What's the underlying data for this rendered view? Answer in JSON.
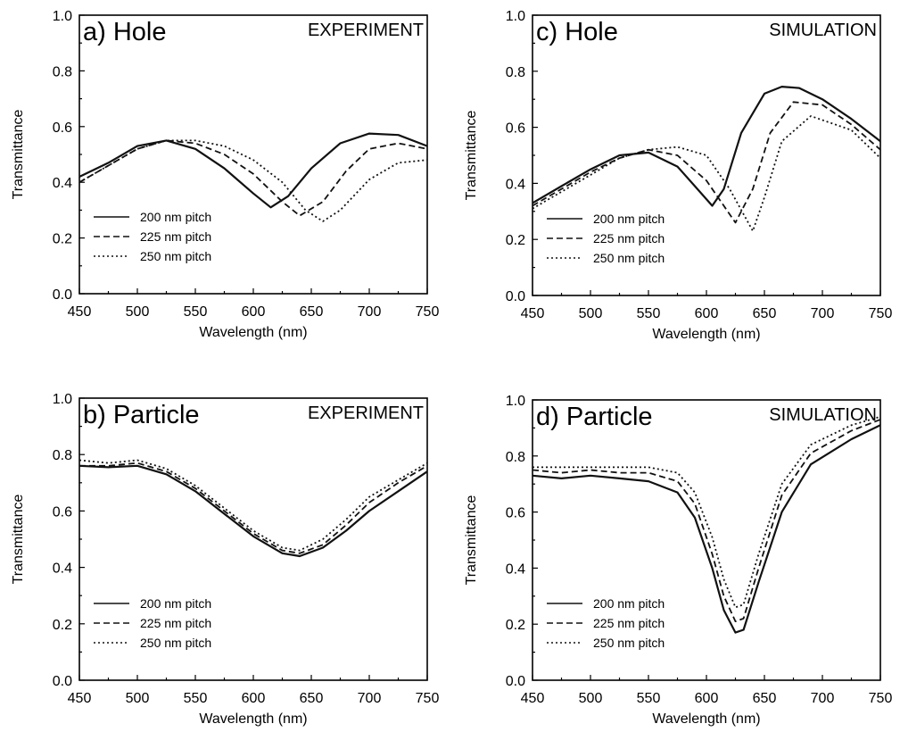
{
  "chart_data": [
    {
      "type": "line",
      "panel_label": "a) Hole",
      "tag": "EXPERIMENT",
      "xlabel": "Wavelength (nm)",
      "ylabel": "Transmittance",
      "xlim": [
        450,
        750
      ],
      "ylim": [
        0.0,
        1.0
      ],
      "xticks": [
        "450",
        "500",
        "550",
        "600",
        "650",
        "700",
        "750"
      ],
      "yticks": [
        "0.0",
        "0.2",
        "0.4",
        "0.6",
        "0.8",
        "1.0"
      ],
      "legend_position": "bottom-left",
      "series": [
        {
          "name": "200 nm pitch",
          "style": "solid",
          "x": [
            450,
            475,
            500,
            525,
            550,
            575,
            600,
            615,
            630,
            650,
            675,
            700,
            725,
            750
          ],
          "y": [
            0.42,
            0.47,
            0.53,
            0.55,
            0.52,
            0.45,
            0.36,
            0.31,
            0.35,
            0.45,
            0.54,
            0.575,
            0.57,
            0.53
          ]
        },
        {
          "name": "225 nm pitch",
          "style": "dashed",
          "x": [
            450,
            475,
            500,
            525,
            550,
            575,
            600,
            625,
            640,
            660,
            680,
            700,
            725,
            750
          ],
          "y": [
            0.4,
            0.46,
            0.52,
            0.55,
            0.54,
            0.5,
            0.43,
            0.33,
            0.28,
            0.33,
            0.44,
            0.52,
            0.54,
            0.52
          ]
        },
        {
          "name": "250 nm pitch",
          "style": "dotted",
          "x": [
            450,
            475,
            500,
            525,
            550,
            575,
            600,
            625,
            645,
            660,
            675,
            700,
            725,
            750
          ],
          "y": [
            0.4,
            0.46,
            0.52,
            0.55,
            0.55,
            0.53,
            0.48,
            0.4,
            0.3,
            0.26,
            0.3,
            0.41,
            0.47,
            0.48
          ]
        }
      ]
    },
    {
      "type": "line",
      "panel_label": "b) Particle",
      "tag": "EXPERIMENT",
      "xlabel": "Wavelength (nm)",
      "ylabel": "Transmittance",
      "xlim": [
        450,
        750
      ],
      "ylim": [
        0.0,
        1.0
      ],
      "xticks": [
        "450",
        "500",
        "550",
        "600",
        "650",
        "700",
        "750"
      ],
      "yticks": [
        "0.0",
        "0.2",
        "0.4",
        "0.6",
        "0.8",
        "1.0"
      ],
      "legend_position": "bottom-left",
      "series": [
        {
          "name": "200 nm pitch",
          "style": "solid",
          "x": [
            450,
            475,
            500,
            525,
            550,
            575,
            600,
            625,
            640,
            660,
            680,
            700,
            725,
            750
          ],
          "y": [
            0.76,
            0.755,
            0.76,
            0.73,
            0.67,
            0.59,
            0.51,
            0.45,
            0.44,
            0.47,
            0.53,
            0.6,
            0.67,
            0.74
          ]
        },
        {
          "name": "225 nm pitch",
          "style": "dashed",
          "x": [
            450,
            475,
            500,
            525,
            550,
            575,
            600,
            625,
            640,
            660,
            680,
            700,
            725,
            750
          ],
          "y": [
            0.76,
            0.76,
            0.77,
            0.74,
            0.68,
            0.6,
            0.52,
            0.46,
            0.45,
            0.48,
            0.55,
            0.63,
            0.7,
            0.76
          ]
        },
        {
          "name": "250 nm pitch",
          "style": "dotted",
          "x": [
            450,
            475,
            500,
            525,
            550,
            575,
            600,
            625,
            640,
            660,
            680,
            700,
            725,
            750
          ],
          "y": [
            0.78,
            0.77,
            0.78,
            0.75,
            0.69,
            0.61,
            0.53,
            0.47,
            0.46,
            0.5,
            0.57,
            0.65,
            0.71,
            0.77
          ]
        }
      ]
    },
    {
      "type": "line",
      "panel_label": "c) Hole",
      "tag": "SIMULATION",
      "xlabel": "Wavelength (nm)",
      "ylabel": "Transmittance",
      "xlim": [
        450,
        750
      ],
      "ylim": [
        0.0,
        1.0
      ],
      "xticks": [
        "450",
        "500",
        "550",
        "600",
        "650",
        "700",
        "750"
      ],
      "yticks": [
        "0.0",
        "0.2",
        "0.4",
        "0.6",
        "0.8",
        "1.0"
      ],
      "legend_position": "bottom-left",
      "series": [
        {
          "name": "200 nm pitch",
          "style": "solid",
          "x": [
            450,
            475,
            500,
            525,
            550,
            575,
            590,
            605,
            615,
            630,
            650,
            665,
            680,
            700,
            725,
            750
          ],
          "y": [
            0.33,
            0.39,
            0.45,
            0.5,
            0.51,
            0.46,
            0.39,
            0.32,
            0.38,
            0.58,
            0.72,
            0.745,
            0.74,
            0.7,
            0.63,
            0.55
          ]
        },
        {
          "name": "225 nm pitch",
          "style": "dashed",
          "x": [
            450,
            475,
            500,
            525,
            550,
            575,
            600,
            625,
            640,
            655,
            675,
            700,
            725,
            750
          ],
          "y": [
            0.32,
            0.38,
            0.44,
            0.49,
            0.52,
            0.5,
            0.41,
            0.26,
            0.38,
            0.58,
            0.69,
            0.68,
            0.61,
            0.52
          ]
        },
        {
          "name": "250 nm pitch",
          "style": "dotted",
          "x": [
            450,
            475,
            500,
            525,
            550,
            575,
            600,
            620,
            640,
            650,
            665,
            690,
            725,
            750
          ],
          "y": [
            0.31,
            0.37,
            0.43,
            0.49,
            0.52,
            0.53,
            0.5,
            0.38,
            0.23,
            0.35,
            0.55,
            0.64,
            0.59,
            0.49
          ]
        }
      ]
    },
    {
      "type": "line",
      "panel_label": "d) Particle",
      "tag": "SIMULATION",
      "xlabel": "Wavelength (nm)",
      "ylabel": "Transmittance",
      "xlim": [
        450,
        750
      ],
      "ylim": [
        0.0,
        1.0
      ],
      "xticks": [
        "450",
        "500",
        "550",
        "600",
        "650",
        "700",
        "750"
      ],
      "yticks": [
        "0.0",
        "0.2",
        "0.4",
        "0.6",
        "0.8",
        "1.0"
      ],
      "legend_position": "bottom-left",
      "series": [
        {
          "name": "200 nm pitch",
          "style": "solid",
          "x": [
            450,
            475,
            500,
            525,
            550,
            575,
            590,
            605,
            615,
            625,
            632,
            645,
            665,
            690,
            725,
            750
          ],
          "y": [
            0.73,
            0.72,
            0.73,
            0.72,
            0.71,
            0.67,
            0.58,
            0.4,
            0.25,
            0.17,
            0.18,
            0.35,
            0.6,
            0.77,
            0.86,
            0.91
          ]
        },
        {
          "name": "225 nm pitch",
          "style": "dashed",
          "x": [
            450,
            475,
            500,
            525,
            550,
            575,
            590,
            605,
            615,
            625,
            632,
            645,
            665,
            690,
            725,
            750
          ],
          "y": [
            0.75,
            0.74,
            0.75,
            0.74,
            0.74,
            0.71,
            0.63,
            0.45,
            0.3,
            0.21,
            0.22,
            0.4,
            0.66,
            0.81,
            0.89,
            0.93
          ]
        },
        {
          "name": "250 nm pitch",
          "style": "dotted",
          "x": [
            450,
            475,
            500,
            525,
            550,
            575,
            590,
            605,
            615,
            625,
            632,
            645,
            665,
            690,
            725,
            750
          ],
          "y": [
            0.76,
            0.76,
            0.76,
            0.76,
            0.76,
            0.74,
            0.67,
            0.51,
            0.36,
            0.26,
            0.27,
            0.45,
            0.7,
            0.84,
            0.91,
            0.94
          ]
        }
      ]
    }
  ]
}
